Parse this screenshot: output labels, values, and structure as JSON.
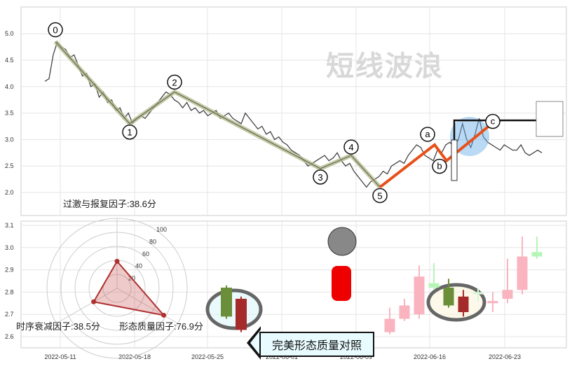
{
  "watermark": "短线波浪",
  "chart_data": [
    {
      "type": "line",
      "ylim": [
        2.0,
        5.0
      ],
      "yticks": [
        "2.0",
        "2.5",
        "3.0",
        "3.5",
        "4.0",
        "4.5",
        "5.0"
      ],
      "price": [
        4.1,
        4.15,
        4.6,
        4.85,
        4.75,
        4.7,
        4.55,
        4.6,
        4.4,
        4.2,
        4.25,
        4.0,
        4.05,
        3.8,
        3.9,
        3.7,
        3.75,
        3.55,
        3.6,
        3.4,
        3.5,
        3.3,
        3.4,
        3.45,
        3.4,
        3.5,
        3.6,
        3.7,
        3.8,
        3.9,
        3.85,
        3.75,
        3.7,
        3.6,
        3.7,
        3.55,
        3.6,
        3.5,
        3.55,
        3.45,
        3.5,
        3.55,
        3.4,
        3.45,
        3.5,
        3.4,
        3.35,
        3.3,
        3.5,
        3.4,
        3.3,
        3.2,
        3.25,
        3.1,
        3.15,
        3.0,
        3.05,
        2.95,
        2.9,
        2.8,
        2.75,
        2.7,
        2.6,
        2.5,
        2.55,
        2.6,
        2.65,
        2.7,
        2.6,
        2.65,
        2.75,
        2.6,
        2.5,
        2.55,
        2.4,
        2.3,
        2.2,
        2.1,
        2.2,
        2.25,
        2.3,
        2.4,
        2.35,
        2.5,
        2.55,
        2.6,
        2.55,
        2.7,
        2.8,
        2.9,
        2.85,
        2.7,
        2.65,
        2.6,
        2.8,
        2.75,
        2.9,
        2.95,
        2.85,
        3.0,
        3.3,
        3.0,
        2.85,
        3.1,
        3.4,
        3.05,
        2.95,
        2.9,
        2.85,
        2.8,
        2.9,
        2.85,
        2.8,
        2.8,
        2.9,
        2.75,
        2.7,
        2.75,
        2.8,
        2.75
      ],
      "waves": [
        {
          "label": "0",
          "price": 4.85
        },
        {
          "label": "1",
          "price": 3.3
        },
        {
          "label": "2",
          "price": 3.9
        },
        {
          "label": "3",
          "price": 2.45
        },
        {
          "label": "4",
          "price": 2.7
        },
        {
          "label": "5",
          "price": 2.1
        }
      ],
      "correction": [
        {
          "label": "a",
          "price": 2.9
        },
        {
          "label": "b",
          "price": 2.6
        },
        {
          "label": "c",
          "price": 3.25
        }
      ],
      "colors": {
        "wave": "#b5bc8a",
        "correction": "#e8501a",
        "line": "#444444"
      }
    },
    {
      "type": "candlestick",
      "ylim": [
        2.55,
        3.12
      ],
      "yticks": [
        "2.6",
        "2.7",
        "2.8",
        "2.9",
        "3.0",
        "3.1"
      ],
      "xticks": [
        "2022-05-11",
        "2022-05-18",
        "2022-05-25",
        "2022-06-01",
        "2022-06-09",
        "2022-06-16",
        "2022-06-23"
      ],
      "compare_candles": [
        {
          "open": 2.69,
          "close": 2.82,
          "high": 2.83,
          "low": 2.68,
          "color": "#6b8e3a"
        },
        {
          "open": 2.77,
          "close": 2.63,
          "high": 2.78,
          "low": 2.62,
          "color": "#a52a2a"
        }
      ],
      "candles": [
        {
          "open": 2.62,
          "close": 2.68,
          "high": 2.73,
          "low": 2.61,
          "color": "#f9b4c0"
        },
        {
          "open": 2.68,
          "close": 2.74,
          "high": 2.77,
          "low": 2.67,
          "color": "#f9b4c0"
        },
        {
          "open": 2.7,
          "close": 2.87,
          "high": 2.92,
          "low": 2.68,
          "color": "#f9b4c0"
        },
        {
          "open": 2.84,
          "close": 2.82,
          "high": 2.93,
          "low": 2.81,
          "color": "#b6f5b6"
        },
        {
          "open": 2.82,
          "close": 2.74,
          "high": 2.86,
          "low": 2.73,
          "color": "#6b8e3a"
        },
        {
          "open": 2.71,
          "close": 2.78,
          "high": 2.81,
          "low": 2.69,
          "color": "#a52a2a"
        },
        {
          "open": 2.8,
          "close": 2.79,
          "high": 2.82,
          "low": 2.76,
          "color": "#d8f7d8"
        },
        {
          "open": 2.75,
          "close": 2.76,
          "high": 2.8,
          "low": 2.71,
          "color": "#f9b4c0"
        },
        {
          "open": 2.77,
          "close": 2.81,
          "high": 2.95,
          "low": 2.75,
          "color": "#f9b4c0"
        },
        {
          "open": 2.81,
          "close": 2.96,
          "high": 3.05,
          "low": 2.79,
          "color": "#f9b4c0"
        },
        {
          "open": 2.98,
          "close": 2.96,
          "high": 3.05,
          "low": 2.95,
          "color": "#b6f5b6"
        }
      ]
    },
    {
      "type": "radar",
      "ticks": [
        "20",
        "40",
        "60",
        "80",
        "100"
      ],
      "axes": [
        {
          "label": "过激与报复因子:38.6分",
          "value": 38.6
        },
        {
          "label": "形态质量因子:76.9分",
          "value": 76.9
        },
        {
          "label": "时序衰减因子:38.5分",
          "value": 38.5
        }
      ],
      "color": "#b03030"
    }
  ],
  "callout": "完美形态质量对照"
}
